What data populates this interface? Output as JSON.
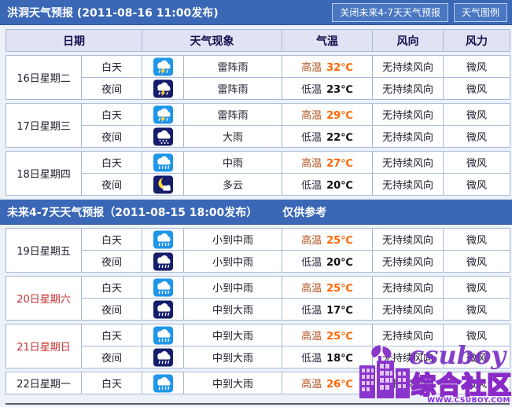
{
  "topbar": {
    "title": "洪洞天气预报 (2011-08-16 11:00发布)",
    "close_button": "关闭未来4-7天天气预报",
    "legend_button": "天气图例"
  },
  "table_headers": {
    "date": "日期",
    "weather": "天气现象",
    "temp": "气温",
    "wind_direction": "风向",
    "wind_force": "风力"
  },
  "sections": [
    {
      "groups": [
        {
          "date": "16日星期二",
          "weekend": false,
          "rows": [
            {
              "period": "白天",
              "icon": "thunderstorm-day",
              "weather": "雷阵雨",
              "temp_label": "高温",
              "temp_value": "32℃",
              "temp_kind": "high",
              "wind_direction": "无持续风向",
              "wind_force": "微风"
            },
            {
              "period": "夜间",
              "icon": "thunderstorm-night",
              "weather": "雷阵雨",
              "temp_label": "低温",
              "temp_value": "23℃",
              "temp_kind": "low",
              "wind_direction": "无持续风向",
              "wind_force": "微风"
            }
          ]
        },
        {
          "date": "17日星期三",
          "weekend": false,
          "rows": [
            {
              "period": "白天",
              "icon": "thunderstorm-day",
              "weather": "雷阵雨",
              "temp_label": "高温",
              "temp_value": "29℃",
              "temp_kind": "high",
              "wind_direction": "无持续风向",
              "wind_force": "微风"
            },
            {
              "period": "夜间",
              "icon": "heavy-rain-night",
              "weather": "大雨",
              "temp_label": "低温",
              "temp_value": "22℃",
              "temp_kind": "low",
              "wind_direction": "无持续风向",
              "wind_force": "微风"
            }
          ]
        },
        {
          "date": "18日星期四",
          "weekend": false,
          "rows": [
            {
              "period": "白天",
              "icon": "moderate-rain-day",
              "weather": "中雨",
              "temp_label": "高温",
              "temp_value": "27℃",
              "temp_kind": "high",
              "wind_direction": "无持续风向",
              "wind_force": "微风"
            },
            {
              "period": "夜间",
              "icon": "cloudy-night",
              "weather": "多云",
              "temp_label": "低温",
              "temp_value": "20℃",
              "temp_kind": "low",
              "wind_direction": "无持续风向",
              "wind_force": "微风"
            }
          ]
        }
      ]
    },
    {
      "bar_title": "未来4-7天天气预报（2011-08-15 18:00发布）",
      "bar_note": "仅供参考",
      "groups": [
        {
          "date": "19日星期五",
          "weekend": false,
          "rows": [
            {
              "period": "白天",
              "icon": "rain-day",
              "weather": "小到中雨",
              "temp_label": "高温",
              "temp_value": "25℃",
              "temp_kind": "high",
              "wind_direction": "无持续风向",
              "wind_force": "微风"
            },
            {
              "period": "夜间",
              "icon": "rain-night",
              "weather": "小到中雨",
              "temp_label": "低温",
              "temp_value": "20℃",
              "temp_kind": "low",
              "wind_direction": "无持续风向",
              "wind_force": "微风"
            }
          ]
        },
        {
          "date": "20日星期六",
          "weekend": true,
          "rows": [
            {
              "period": "白天",
              "icon": "rain-day",
              "weather": "小到中雨",
              "temp_label": "高温",
              "temp_value": "25℃",
              "temp_kind": "high",
              "wind_direction": "无持续风向",
              "wind_force": "微风"
            },
            {
              "period": "夜间",
              "icon": "rain-night",
              "weather": "中到大雨",
              "temp_label": "低温",
              "temp_value": "17℃",
              "temp_kind": "low",
              "wind_direction": "无持续风向",
              "wind_force": "微风"
            }
          ]
        },
        {
          "date": "21日星期日",
          "weekend": true,
          "rows": [
            {
              "period": "白天",
              "icon": "rain-day",
              "weather": "中到大雨",
              "temp_label": "高温",
              "temp_value": "25℃",
              "temp_kind": "high",
              "wind_direction": "无持续风向",
              "wind_force": "微风"
            },
            {
              "period": "夜间",
              "icon": "rain-night",
              "weather": "中到大雨",
              "temp_label": "低温",
              "temp_value": "18℃",
              "temp_kind": "low",
              "wind_direction": "无持续风向",
              "wind_force": "微风"
            }
          ]
        },
        {
          "date": "22日星期一",
          "weekend": false,
          "rows": [
            {
              "period": "白天",
              "icon": "rain-day",
              "weather": "中到大雨",
              "temp_label": "高温",
              "temp_value": "26℃",
              "temp_kind": "high",
              "wind_direction": "无持续风向",
              "wind_force": "微风"
            }
          ]
        }
      ]
    }
  ],
  "watermark": {
    "name": "csuboy",
    "community": "综合社区",
    "url": "WWW.CSUBOY.COM"
  },
  "colors": {
    "bar_blue": "#3a67b6",
    "header_row_bg": "#dfe3f3",
    "table_border": "#a6bad8",
    "high_temp_value": "#ff6600",
    "high_temp_label": "#b0531d",
    "low_temp_label": "#2e2e44",
    "weekend_red": "#c43030",
    "day_icon_bg": "#1e96ea",
    "night_icon_bg": "#161d6b",
    "watermark_purple": "#8a2bc8"
  }
}
